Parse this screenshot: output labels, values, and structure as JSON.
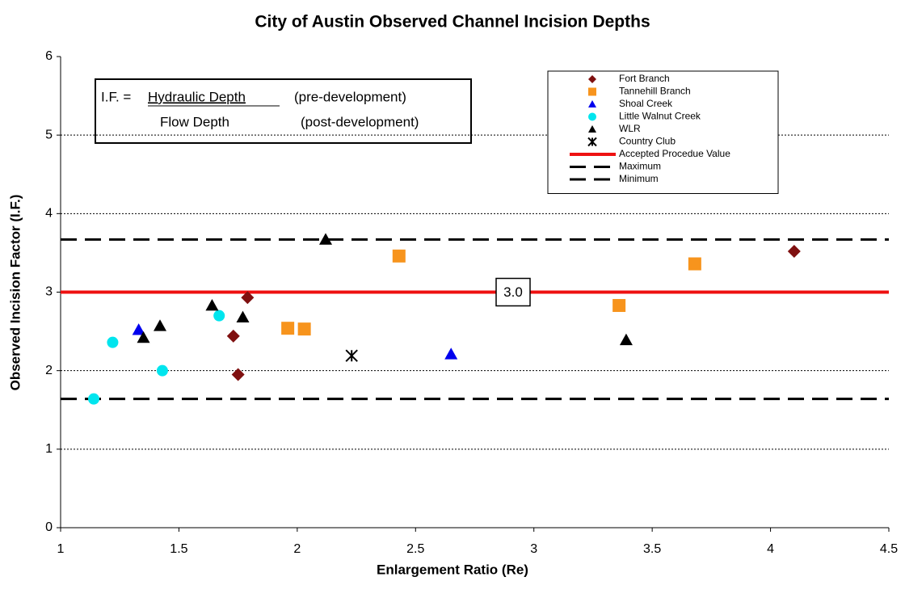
{
  "chart_data": {
    "type": "scatter",
    "title": "City of Austin Observed Channel Incision Depths",
    "x_label": "Enlargement Ratio (Re)",
    "y_label": "Observed Incision Factor (I.F.)",
    "xlim": [
      1,
      4.5
    ],
    "xticks": [
      1,
      1.5,
      2,
      2.5,
      3,
      3.5,
      4,
      4.5
    ],
    "ylim": [
      0,
      6
    ],
    "yticks": [
      0,
      1,
      2,
      3,
      4,
      5,
      6
    ],
    "grid": true,
    "legend": "top-right",
    "series": [
      {
        "name": "Fort Branch",
        "color": "#7f1010",
        "marker": "diamond",
        "x": [
          1.73,
          1.75,
          1.79,
          4.1
        ],
        "values": [
          2.44,
          1.95,
          2.93,
          3.52
        ]
      },
      {
        "name": "Tannehill Branch",
        "color": "#f7941d",
        "marker": "square",
        "x": [
          1.96,
          2.03,
          2.43,
          3.36,
          3.68
        ],
        "values": [
          2.54,
          2.53,
          3.46,
          2.83,
          3.36
        ]
      },
      {
        "name": "Shoal Creek",
        "color": "#0000ee",
        "marker": "triangle",
        "x": [
          1.33,
          2.65
        ],
        "values": [
          2.52,
          2.21
        ]
      },
      {
        "name": "Little Walnut Creek",
        "color": "#00e5ee",
        "marker": "circle",
        "x": [
          1.14,
          1.22,
          1.43,
          1.67
        ],
        "values": [
          1.64,
          2.36,
          2.0,
          2.7
        ]
      },
      {
        "name": "WLR",
        "color": "#000000",
        "marker": "triangle",
        "x": [
          1.35,
          1.42,
          1.64,
          1.77,
          2.12,
          3.39
        ],
        "values": [
          2.42,
          2.57,
          2.83,
          2.68,
          3.67,
          2.39
        ]
      },
      {
        "name": "Country Club",
        "color": "#000000",
        "marker": "star",
        "x": [
          2.23
        ],
        "values": [
          2.19
        ]
      }
    ],
    "reference_lines": [
      {
        "name": "Accepted Procedue Value",
        "color": "#ee1111",
        "value": 3,
        "value_label": "3.0",
        "dashed": false
      },
      {
        "name": "Maximum",
        "color": "#000000",
        "value": 3.67,
        "dashed": true
      },
      {
        "name": "Minimum",
        "color": "#000000",
        "value": 1.64,
        "dashed": true
      }
    ],
    "formula": {
      "lhs": "I.F. =",
      "numerator": "Hydraulic Depth",
      "numerator_note": "(pre-development)",
      "denominator": "Flow Depth",
      "denominator_note": "(post-development)"
    }
  }
}
